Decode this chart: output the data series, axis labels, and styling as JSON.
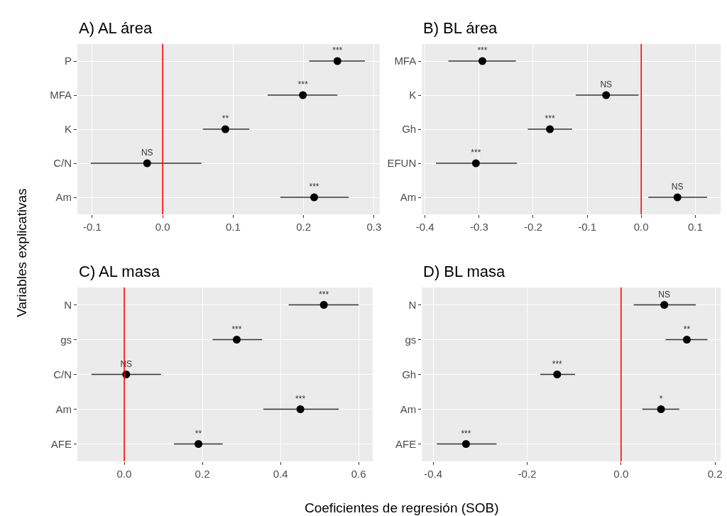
{
  "chart_data": [
    {
      "type": "scatter",
      "title": "A) AL área",
      "ylabel": "Variables explicativas",
      "orientation": "horizontal",
      "categories": [
        "P",
        "MFA",
        "K",
        "C/N",
        "Am"
      ],
      "values": [
        0.248,
        0.199,
        0.089,
        -0.022,
        0.215
      ],
      "errors": [
        [
          0.208,
          0.287
        ],
        [
          0.149,
          0.248
        ],
        [
          0.057,
          0.123
        ],
        [
          -0.102,
          0.055
        ],
        [
          0.167,
          0.264
        ]
      ],
      "value_labels": [
        "***",
        "***",
        "**",
        "NS",
        "***"
      ],
      "color": "#000000",
      "marker": "circle",
      "xlim": [
        -0.121,
        0.308
      ],
      "xticks": [
        {
          "value": -0.1,
          "label": "-0.1"
        },
        {
          "value": 0,
          "label": "0.0"
        },
        {
          "value": 0.1,
          "label": "0.1"
        },
        {
          "value": 0.2,
          "label": "0.2"
        },
        {
          "value": 0.3,
          "label": "0.3"
        }
      ],
      "ref_lines": [
        {
          "axis": "x",
          "value": 0,
          "color": "#ff0000"
        }
      ],
      "grid": true
    },
    {
      "type": "scatter",
      "title": "B) BL área",
      "orientation": "horizontal",
      "categories": [
        "MFA",
        "K",
        "Gh",
        "EFUN",
        "Am"
      ],
      "values": [
        -0.294,
        -0.065,
        -0.169,
        -0.306,
        0.067
      ],
      "errors": [
        [
          -0.357,
          -0.232
        ],
        [
          -0.121,
          -0.005
        ],
        [
          -0.21,
          -0.128
        ],
        [
          -0.38,
          -0.23
        ],
        [
          0.013,
          0.122
        ]
      ],
      "value_labels": [
        "***",
        "NS",
        "***",
        "***",
        "NS"
      ],
      "color": "#000000",
      "marker": "circle",
      "xlim": [
        -0.406,
        0.147
      ],
      "xticks": [
        {
          "value": -0.4,
          "label": "-0.4"
        },
        {
          "value": -0.3,
          "label": "-0.3"
        },
        {
          "value": -0.2,
          "label": "-0.2"
        },
        {
          "value": -0.1,
          "label": "-0.1"
        },
        {
          "value": 0,
          "label": "0.0"
        },
        {
          "value": 0.1,
          "label": "0.1"
        }
      ],
      "ref_lines": [
        {
          "axis": "x",
          "value": 0,
          "color": "#ff0000"
        }
      ],
      "grid": true
    },
    {
      "type": "scatter",
      "title": "C) AL masa",
      "xlabel": "Coeficientes de regresión (SOB)",
      "orientation": "horizontal",
      "categories": [
        "N",
        "gs",
        "C/N",
        "Am",
        "AFE"
      ],
      "values": [
        0.511,
        0.288,
        0.005,
        0.451,
        0.19
      ],
      "errors": [
        [
          0.421,
          0.6
        ],
        [
          0.226,
          0.353
        ],
        [
          -0.084,
          0.094
        ],
        [
          0.356,
          0.549
        ],
        [
          0.127,
          0.252
        ]
      ],
      "value_labels": [
        "***",
        "***",
        "NS",
        "***",
        "**"
      ],
      "color": "#000000",
      "marker": "circle",
      "xlim": [
        -0.12,
        0.636
      ],
      "xticks": [
        {
          "value": 0,
          "label": "0.0"
        },
        {
          "value": 0.2,
          "label": "0.2"
        },
        {
          "value": 0.4,
          "label": "0.4"
        },
        {
          "value": 0.6,
          "label": "0.6"
        }
      ],
      "ref_lines": [
        {
          "axis": "x",
          "value": 0,
          "color": "#ff0000"
        }
      ],
      "grid": true
    },
    {
      "type": "scatter",
      "title": "D) BL masa",
      "orientation": "horizontal",
      "categories": [
        "N",
        "gs",
        "Gh",
        "Am",
        "AFE"
      ],
      "values": [
        0.092,
        0.14,
        -0.136,
        0.085,
        -0.33
      ],
      "errors": [
        [
          0.027,
          0.159
        ],
        [
          0.095,
          0.184
        ],
        [
          -0.172,
          -0.098
        ],
        [
          0.045,
          0.124
        ],
        [
          -0.392,
          -0.265
        ]
      ],
      "value_labels": [
        "NS",
        "**",
        "***",
        "*",
        "***"
      ],
      "color": "#000000",
      "marker": "circle",
      "xlim": [
        -0.424,
        0.212
      ],
      "xticks": [
        {
          "value": -0.4,
          "label": "-0.4"
        },
        {
          "value": -0.2,
          "label": "-0.2"
        },
        {
          "value": 0,
          "label": "0.0"
        },
        {
          "value": 0.2,
          "label": "0.2"
        }
      ],
      "ref_lines": [
        {
          "axis": "x",
          "value": 0,
          "color": "#ff0000"
        }
      ],
      "grid": true
    }
  ]
}
